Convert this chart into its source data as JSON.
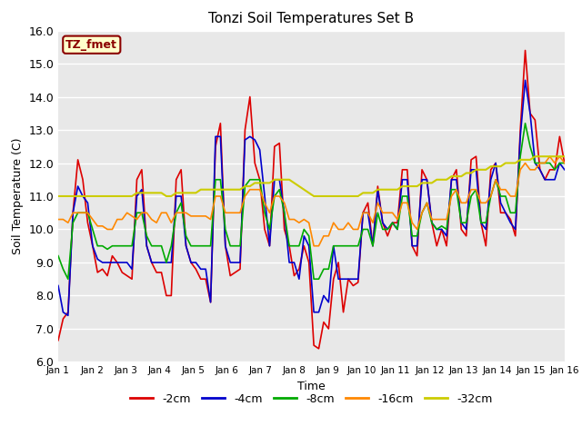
{
  "title": "Tonzi Soil Temperatures Set B",
  "xlabel": "Time",
  "ylabel": "Soil Temperature (C)",
  "ylim": [
    6.0,
    16.0
  ],
  "xlim": [
    0,
    15
  ],
  "yticks": [
    6.0,
    7.0,
    8.0,
    9.0,
    10.0,
    11.0,
    12.0,
    13.0,
    14.0,
    15.0,
    16.0
  ],
  "xtick_labels": [
    "Jan 1",
    "Jan 2",
    "Jan 3",
    "Jan 4",
    "Jan 5",
    "Jan 6",
    "Jan 7",
    "Jan 8",
    "Jan 9",
    "Jan 10",
    "Jan 11",
    "Jan 12",
    "Jan 13",
    "Jan 14",
    "Jan 15",
    "Jan 16"
  ],
  "bg_color": "#e8e8e8",
  "fig_color": "#ffffff",
  "label_box_text": "TZ_fmet",
  "label_box_facecolor": "#ffffcc",
  "label_box_edgecolor": "#8b0000",
  "series": {
    "-2cm": {
      "color": "#dd0000",
      "lw": 1.2,
      "y": [
        6.65,
        7.3,
        7.5,
        10.5,
        12.1,
        11.5,
        10.2,
        9.5,
        8.7,
        8.8,
        8.6,
        9.2,
        9.0,
        8.7,
        8.6,
        8.5,
        11.5,
        11.8,
        9.5,
        9.0,
        8.7,
        8.7,
        8.0,
        8.0,
        11.5,
        11.8,
        9.5,
        9.0,
        8.8,
        8.5,
        8.5,
        7.8,
        12.5,
        13.2,
        9.5,
        8.6,
        8.7,
        8.8,
        13.0,
        14.0,
        12.0,
        11.5,
        10.0,
        9.5,
        12.5,
        12.6,
        10.0,
        9.5,
        8.6,
        8.8,
        9.5,
        9.0,
        6.5,
        6.4,
        7.2,
        7.0,
        8.5,
        9.0,
        7.5,
        8.5,
        8.3,
        8.4,
        10.5,
        10.8,
        9.5,
        11.3,
        10.2,
        9.8,
        10.2,
        10.2,
        11.8,
        11.8,
        9.5,
        9.2,
        11.8,
        11.5,
        10.2,
        9.5,
        10.0,
        9.5,
        11.5,
        11.8,
        10.0,
        9.8,
        12.1,
        12.2,
        10.2,
        9.5,
        11.8,
        12.0,
        10.5,
        10.5,
        10.3,
        9.8,
        13.0,
        15.4,
        13.5,
        13.3,
        11.8,
        11.5,
        11.8,
        11.8,
        12.8,
        12.0
      ]
    },
    "-4cm": {
      "color": "#0000cc",
      "lw": 1.2,
      "y": [
        8.3,
        7.5,
        7.4,
        10.5,
        11.3,
        11.0,
        10.8,
        9.5,
        9.1,
        9.0,
        9.0,
        9.0,
        9.0,
        9.0,
        9.0,
        8.8,
        11.0,
        11.2,
        9.5,
        9.0,
        9.0,
        9.0,
        9.0,
        9.0,
        11.0,
        11.0,
        9.5,
        9.0,
        9.0,
        8.8,
        8.8,
        7.8,
        12.8,
        12.8,
        9.5,
        9.0,
        9.0,
        9.0,
        12.7,
        12.8,
        12.7,
        12.4,
        11.0,
        9.5,
        11.5,
        11.5,
        10.5,
        9.0,
        9.0,
        8.5,
        9.8,
        9.5,
        7.5,
        7.5,
        8.0,
        7.8,
        9.5,
        8.5,
        8.5,
        8.5,
        8.5,
        8.5,
        10.5,
        10.5,
        9.5,
        11.2,
        10.2,
        10.0,
        10.2,
        10.0,
        11.5,
        11.5,
        9.5,
        9.5,
        11.5,
        11.5,
        10.2,
        10.0,
        10.0,
        9.8,
        11.5,
        11.5,
        10.2,
        10.0,
        11.8,
        11.8,
        10.2,
        10.0,
        11.5,
        12.0,
        10.8,
        10.5,
        10.2,
        10.0,
        12.8,
        14.5,
        13.5,
        12.0,
        11.8,
        11.5,
        11.5,
        11.5,
        12.0,
        11.8
      ]
    },
    "-8cm": {
      "color": "#00aa00",
      "lw": 1.2,
      "y": [
        9.2,
        8.8,
        8.5,
        10.2,
        10.5,
        10.5,
        10.5,
        10.0,
        9.5,
        9.5,
        9.4,
        9.5,
        9.5,
        9.5,
        9.5,
        9.5,
        10.5,
        10.5,
        9.8,
        9.5,
        9.5,
        9.5,
        9.0,
        9.5,
        10.5,
        10.8,
        9.8,
        9.5,
        9.5,
        9.5,
        9.5,
        9.5,
        11.5,
        11.5,
        10.0,
        9.5,
        9.5,
        9.5,
        11.3,
        11.5,
        11.5,
        11.5,
        10.5,
        10.0,
        11.0,
        11.2,
        10.5,
        9.5,
        9.5,
        9.5,
        10.0,
        9.8,
        8.5,
        8.5,
        8.8,
        8.8,
        9.5,
        9.5,
        9.5,
        9.5,
        9.5,
        9.5,
        10.0,
        10.0,
        9.5,
        10.5,
        10.0,
        10.0,
        10.2,
        10.0,
        11.0,
        11.0,
        9.8,
        9.8,
        10.5,
        10.8,
        10.2,
        10.0,
        10.1,
        10.0,
        11.2,
        11.2,
        10.2,
        10.2,
        11.0,
        11.2,
        10.2,
        10.2,
        11.0,
        11.5,
        11.0,
        11.0,
        10.5,
        10.5,
        12.2,
        13.2,
        12.5,
        12.0,
        12.0,
        12.0,
        12.0,
        11.8,
        12.0,
        12.0
      ]
    },
    "-16cm": {
      "color": "#ff8800",
      "lw": 1.2,
      "y": [
        10.3,
        10.3,
        10.2,
        10.5,
        10.5,
        10.5,
        10.5,
        10.3,
        10.1,
        10.1,
        10.0,
        10.0,
        10.3,
        10.3,
        10.5,
        10.4,
        10.3,
        10.5,
        10.5,
        10.3,
        10.2,
        10.5,
        10.5,
        10.2,
        10.5,
        10.5,
        10.5,
        10.4,
        10.4,
        10.4,
        10.4,
        10.3,
        11.0,
        11.0,
        10.5,
        10.5,
        10.5,
        10.5,
        11.0,
        11.2,
        11.2,
        11.2,
        10.8,
        10.5,
        11.0,
        11.0,
        10.8,
        10.3,
        10.3,
        10.2,
        10.3,
        10.2,
        9.5,
        9.5,
        9.8,
        9.8,
        10.2,
        10.0,
        10.0,
        10.2,
        10.0,
        10.0,
        10.5,
        10.5,
        10.2,
        10.8,
        10.5,
        10.5,
        10.5,
        10.3,
        10.8,
        10.8,
        10.2,
        10.0,
        10.5,
        10.8,
        10.3,
        10.3,
        10.3,
        10.3,
        11.0,
        11.2,
        10.8,
        10.8,
        11.2,
        11.2,
        10.8,
        10.8,
        11.0,
        11.5,
        11.2,
        11.2,
        11.0,
        11.0,
        11.8,
        12.0,
        11.8,
        11.8,
        12.0,
        12.0,
        12.2,
        12.0,
        12.2,
        12.0
      ]
    },
    "-32cm": {
      "color": "#cccc00",
      "lw": 1.5,
      "y": [
        11.0,
        11.0,
        11.0,
        11.0,
        11.0,
        11.0,
        11.0,
        11.0,
        11.0,
        11.0,
        11.0,
        11.0,
        11.0,
        11.0,
        11.0,
        11.0,
        11.1,
        11.1,
        11.1,
        11.1,
        11.1,
        11.1,
        11.0,
        11.0,
        11.1,
        11.1,
        11.1,
        11.1,
        11.1,
        11.2,
        11.2,
        11.2,
        11.2,
        11.2,
        11.2,
        11.2,
        11.2,
        11.2,
        11.3,
        11.3,
        11.4,
        11.4,
        11.4,
        11.4,
        11.5,
        11.5,
        11.5,
        11.5,
        11.4,
        11.3,
        11.2,
        11.1,
        11.0,
        11.0,
        11.0,
        11.0,
        11.0,
        11.0,
        11.0,
        11.0,
        11.0,
        11.0,
        11.1,
        11.1,
        11.1,
        11.2,
        11.2,
        11.2,
        11.2,
        11.2,
        11.3,
        11.3,
        11.3,
        11.3,
        11.4,
        11.4,
        11.4,
        11.5,
        11.5,
        11.5,
        11.6,
        11.6,
        11.6,
        11.7,
        11.7,
        11.8,
        11.8,
        11.8,
        11.9,
        11.9,
        11.9,
        12.0,
        12.0,
        12.0,
        12.1,
        12.1,
        12.1,
        12.2,
        12.2,
        12.2,
        12.2,
        12.2,
        12.2,
        12.2
      ]
    }
  },
  "legend_entries": [
    "-2cm",
    "-4cm",
    "-8cm",
    "-16cm",
    "-32cm"
  ],
  "legend_colors": [
    "#dd0000",
    "#0000cc",
    "#00aa00",
    "#ff8800",
    "#cccc00"
  ]
}
